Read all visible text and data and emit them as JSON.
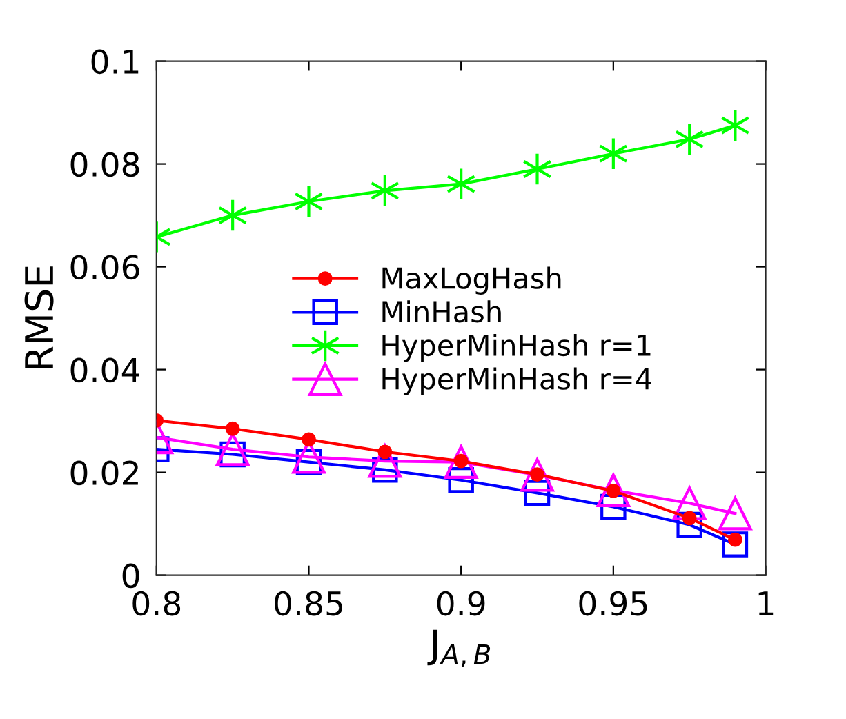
{
  "chart_data": {
    "type": "line",
    "xlabel": "J$_{A,B}$",
    "ylabel": "RMSE",
    "x": [
      0.8,
      0.825,
      0.85,
      0.875,
      0.9,
      0.925,
      0.95,
      0.975,
      0.99
    ],
    "series": [
      {
        "name": "MaxLogHash",
        "color": "#ff0000",
        "marker": "circle",
        "values": [
          0.0301,
          0.0285,
          0.0264,
          0.024,
          0.0222,
          0.0196,
          0.0164,
          0.0111,
          0.0069
        ]
      },
      {
        "name": "MinHash",
        "color": "#0000ff",
        "marker": "square",
        "values": [
          0.0245,
          0.0235,
          0.022,
          0.0205,
          0.0185,
          0.016,
          0.0133,
          0.0098,
          0.006
        ]
      },
      {
        "name": "HyperMinHash r=1",
        "color": "#00ff00",
        "marker": "cross",
        "values": [
          0.0658,
          0.07,
          0.0727,
          0.0748,
          0.0761,
          0.079,
          0.082,
          0.0848,
          0.0875
        ]
      },
      {
        "name": "HyperMinHash r=4",
        "color": "#ff00ff",
        "marker": "triangle",
        "values": [
          0.0268,
          0.0245,
          0.023,
          0.0222,
          0.022,
          0.0195,
          0.0165,
          0.014,
          0.012
        ]
      }
    ],
    "xlim": [
      0.8,
      1
    ],
    "xticks": [
      0.8,
      0.85,
      0.9,
      0.95,
      1
    ],
    "ylim": [
      0,
      0.1
    ],
    "yticks": [
      0,
      0.02,
      0.04,
      0.06,
      0.08,
      0.1
    ],
    "grid": false,
    "legend": "center"
  }
}
